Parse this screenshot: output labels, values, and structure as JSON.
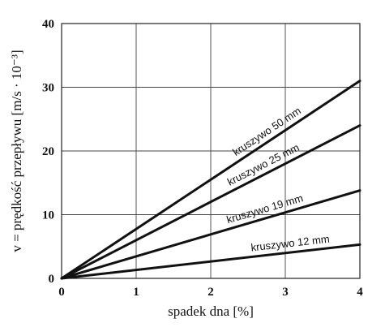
{
  "chart_data": {
    "type": "line",
    "title": "",
    "xlabel": "spadek dna [%]",
    "ylabel": "v = prędkość przepływu [m/s · 10⁻³]",
    "xlim": [
      0,
      4
    ],
    "ylim": [
      0,
      40
    ],
    "x_ticks": [
      0,
      1,
      2,
      3,
      4
    ],
    "y_ticks": [
      0,
      10,
      20,
      30,
      40
    ],
    "grid": true,
    "legend": "none",
    "series": [
      {
        "name": "kruszywo 50 mm",
        "x": [
          0,
          4
        ],
        "y": [
          0,
          31
        ]
      },
      {
        "name": "kruszywo 25 mm",
        "x": [
          0,
          4
        ],
        "y": [
          0,
          24
        ]
      },
      {
        "name": "kruszywo 19 mm",
        "x": [
          0,
          4
        ],
        "y": [
          0,
          13.8
        ]
      },
      {
        "name": "kruszywo 12 mm",
        "x": [
          0,
          4
        ],
        "y": [
          0,
          5.3
        ]
      }
    ]
  }
}
